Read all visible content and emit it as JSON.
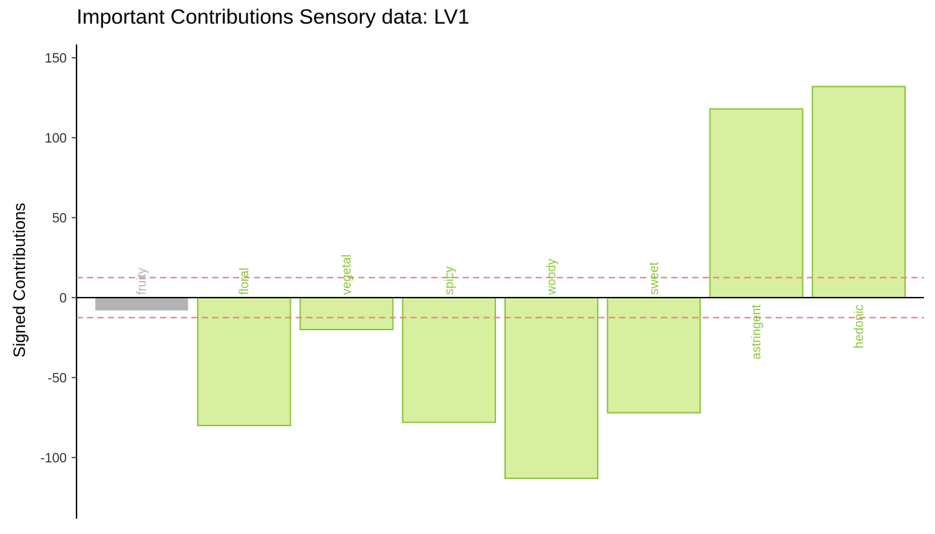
{
  "chart_data": {
    "type": "bar",
    "title": "Important Contributions Sensory data: LV1",
    "ylabel": "Signed Contributions",
    "xlabel": "",
    "ylim": [
      -137,
      158
    ],
    "yticks": [
      150,
      100,
      50,
      0,
      -50,
      -100
    ],
    "ytick_labels": [
      "150",
      "100",
      "50",
      "0",
      "-50",
      "-100"
    ],
    "threshold": 12.5,
    "categories": [
      "fruity",
      "floral",
      "vegetal",
      "spicy",
      "woody",
      "sweet",
      "astringent",
      "hedonic"
    ],
    "values": [
      -8,
      -80,
      -20,
      -78,
      -113,
      -72,
      118,
      132
    ],
    "important": [
      false,
      true,
      true,
      true,
      true,
      true,
      true,
      true
    ],
    "colors": {
      "important_fill": "#d7ef9f",
      "important_stroke": "#8dc63f",
      "important_text": "#8dc63f",
      "other_fill": "#b3b3b3",
      "other_text": "#b3b3b3",
      "threshold_line": "#f08080"
    },
    "grid": false,
    "legend": "none"
  }
}
